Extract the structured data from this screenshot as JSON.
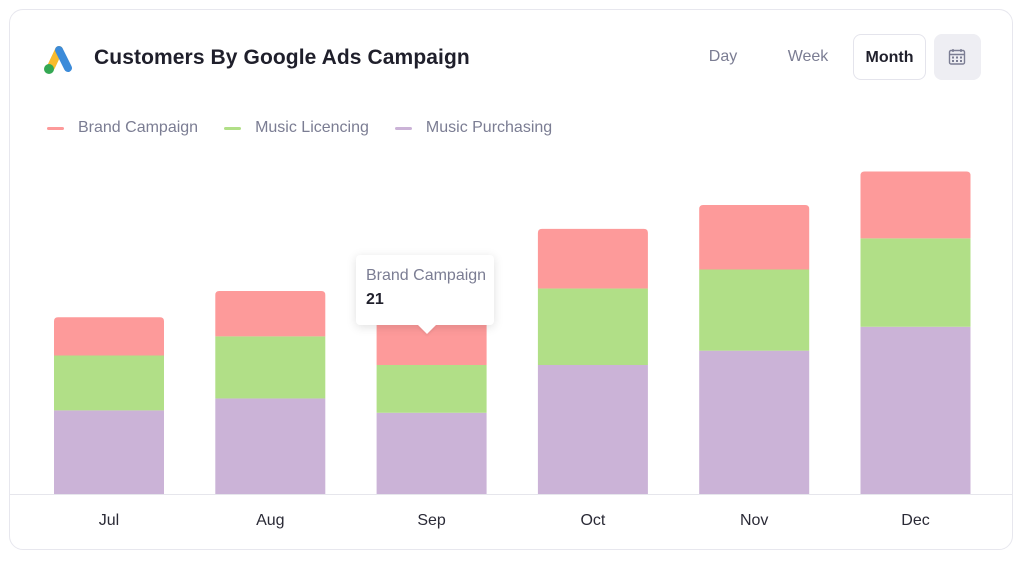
{
  "header": {
    "title": "Customers By Google Ads Campaign",
    "logo_icon": "google-ads-logo-icon"
  },
  "controls": {
    "day_label": "Day",
    "week_label": "Week",
    "month_label": "Month",
    "selected": "Month",
    "calendar_icon": "calendar-icon"
  },
  "tooltip": {
    "series": "Brand Campaign",
    "value": "21"
  },
  "chart_data": {
    "type": "bar",
    "stacked": true,
    "categories": [
      "Jul",
      "Aug",
      "Sep",
      "Oct",
      "Nov",
      "Dec"
    ],
    "series": [
      {
        "name": "Music Purchasing",
        "color": "#cbb3d7",
        "values": [
          35,
          40,
          34,
          54,
          60,
          70
        ]
      },
      {
        "name": "Music Licencing",
        "color": "#b1df87",
        "values": [
          23,
          26,
          20,
          32,
          34,
          37
        ]
      },
      {
        "name": "Brand Campaign",
        "color": "#fd9a9a",
        "values": [
          16,
          19,
          21,
          25,
          27,
          28
        ]
      }
    ],
    "legend_order": [
      "Brand Campaign",
      "Music Licencing",
      "Music Purchasing"
    ],
    "ylim": [
      0,
      180
    ],
    "grid": false,
    "legend_position": "top-left",
    "title": "",
    "xlabel": "",
    "ylabel": ""
  }
}
